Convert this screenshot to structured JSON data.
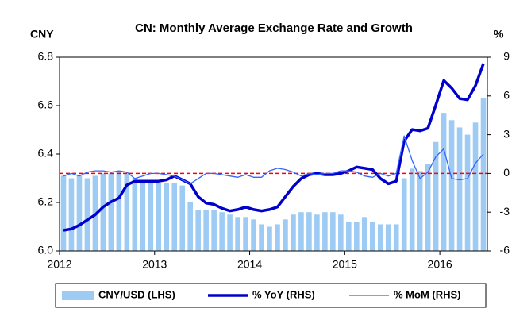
{
  "chart_data": {
    "type": "bar-line",
    "title": "CN: Monthly Average Exchange Rate and Growth",
    "y_label": "CNY",
    "y2_label": "%",
    "categories": [
      "2012",
      null,
      null,
      null,
      null,
      null,
      null,
      null,
      null,
      null,
      null,
      null,
      "2013",
      null,
      null,
      null,
      null,
      null,
      null,
      null,
      null,
      null,
      null,
      null,
      "2014",
      null,
      null,
      null,
      null,
      null,
      null,
      null,
      null,
      null,
      null,
      null,
      "2015",
      null,
      null,
      null,
      null,
      null,
      null,
      null,
      null,
      null,
      null,
      null,
      "2016",
      null,
      null,
      null,
      null,
      null
    ],
    "series": [
      {
        "name": "CNY/USD (LHS)",
        "color": "#9dcbf3",
        "axis": "y",
        "kind": "bar",
        "values": [
          6.31,
          6.3,
          6.31,
          6.3,
          6.31,
          6.32,
          6.32,
          6.33,
          6.32,
          6.3,
          6.29,
          6.29,
          6.28,
          6.28,
          6.28,
          6.27,
          6.2,
          6.17,
          6.17,
          6.17,
          6.16,
          6.15,
          6.14,
          6.14,
          6.13,
          6.11,
          6.1,
          6.11,
          6.13,
          6.15,
          6.16,
          6.16,
          6.15,
          6.16,
          6.16,
          6.15,
          6.12,
          6.12,
          6.14,
          6.12,
          6.11,
          6.11,
          6.11,
          6.3,
          6.34,
          6.33,
          6.36,
          6.45,
          6.57,
          6.54,
          6.51,
          6.48,
          6.53,
          6.63
        ]
      },
      {
        "name": "% YoY (RHS)",
        "color": "#0000cc",
        "axis": "y2",
        "kind": "line",
        "width": 3.5,
        "values": [
          -4.4,
          -4.3,
          -4.0,
          -3.6,
          -3.2,
          -2.6,
          -2.2,
          -1.9,
          -0.9,
          -0.6,
          -0.6,
          -0.6,
          -0.6,
          -0.5,
          -0.2,
          -0.5,
          -0.8,
          -1.8,
          -2.3,
          -2.4,
          -2.7,
          -2.9,
          -2.8,
          -2.6,
          -2.8,
          -2.9,
          -2.8,
          -2.6,
          -1.8,
          -1.0,
          -0.4,
          -0.1,
          0.0,
          -0.1,
          -0.1,
          0.0,
          0.2,
          0.5,
          0.4,
          0.3,
          -0.4,
          -0.8,
          -0.6,
          2.5,
          3.4,
          3.3,
          3.5,
          5.3,
          7.2,
          6.6,
          5.8,
          5.7,
          6.8,
          8.5
        ]
      },
      {
        "name": "% MoM (RHS)",
        "color": "#3366ff",
        "axis": "y2",
        "kind": "line",
        "width": 1.3,
        "values": [
          -0.2,
          0.0,
          -0.2,
          0.1,
          0.2,
          0.2,
          0.1,
          0.2,
          0.1,
          -0.4,
          -0.2,
          0.0,
          0.0,
          -0.1,
          -0.2,
          -0.5,
          -0.8,
          -0.4,
          0.0,
          0.0,
          -0.1,
          -0.2,
          -0.3,
          -0.1,
          -0.3,
          -0.3,
          0.2,
          0.4,
          0.3,
          0.1,
          -0.2,
          0.0,
          -0.1,
          0.0,
          0.0,
          0.2,
          0.2,
          0.1,
          -0.2,
          -0.3,
          0.0,
          -0.2,
          0.0,
          2.9,
          1.0,
          -0.4,
          0.1,
          1.3,
          1.9,
          -0.4,
          -0.5,
          -0.4,
          0.8,
          1.5
        ]
      }
    ],
    "ylim": [
      6.0,
      6.8
    ],
    "yticks": [
      {
        "value": 6.0,
        "label": "6.0"
      },
      6.2,
      6.4,
      6.6,
      6.8
    ],
    "y2lim": [
      -6,
      9
    ],
    "y2ticks": [
      -6,
      -3,
      0,
      3,
      6,
      9
    ],
    "reference_line": {
      "value": 0,
      "axis": "y2",
      "color": "#ff0000"
    },
    "grid": false,
    "legend": "bottom"
  }
}
